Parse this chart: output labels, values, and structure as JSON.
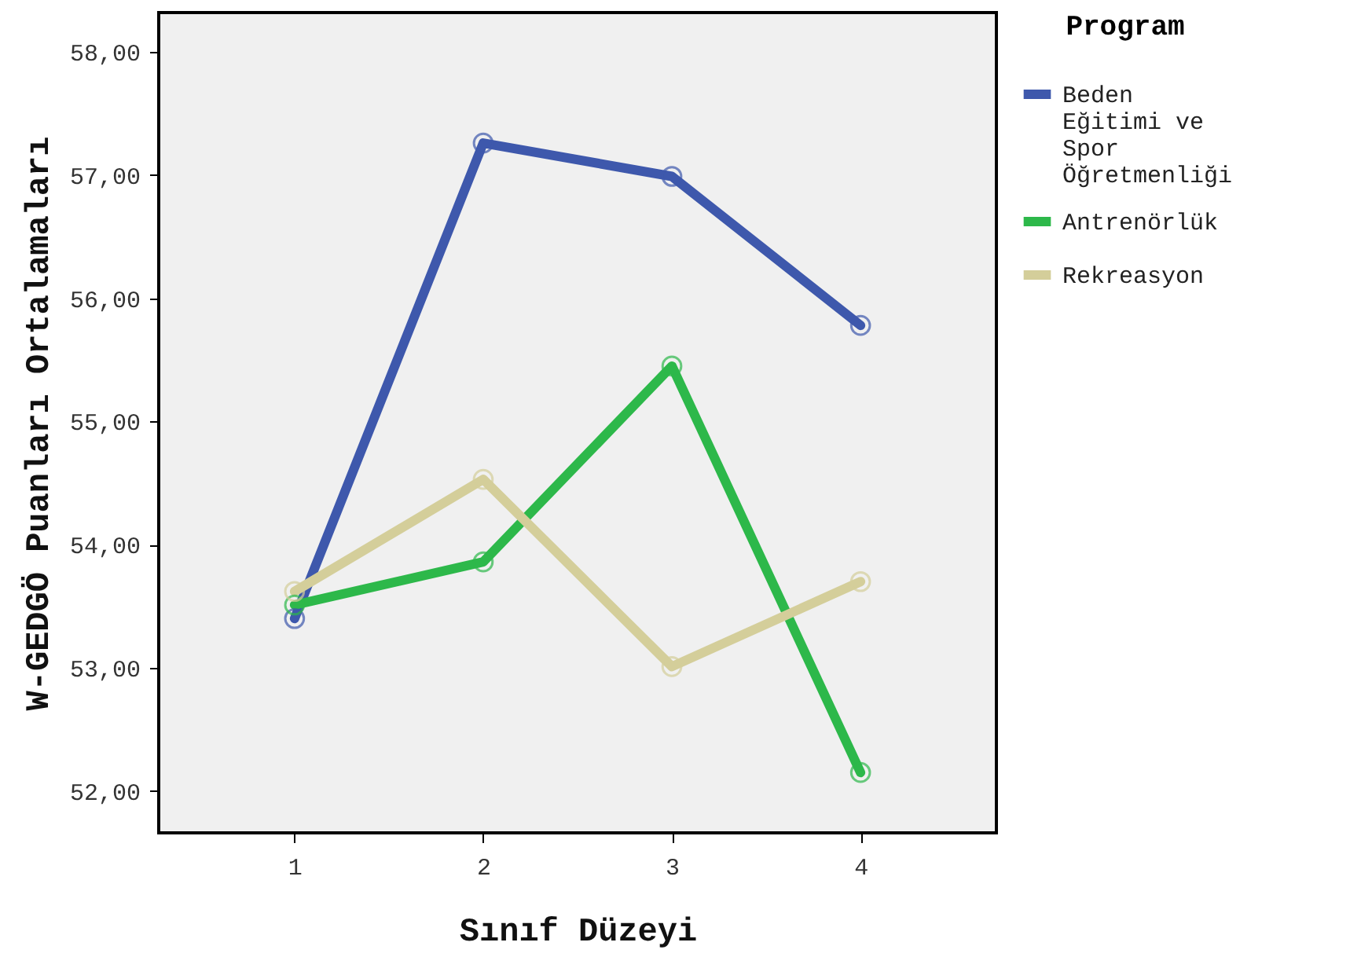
{
  "chart_data": {
    "type": "line",
    "xlabel": "Sınıf Düzeyi",
    "ylabel": "W-GEDGÖ Puanları Ortalamaları",
    "legend_title": "Program",
    "legend": "right",
    "marker": "circle",
    "line_style": "solid",
    "grid": false,
    "x": [
      1,
      2,
      3,
      4
    ],
    "xlim": [
      0.28,
      4.72
    ],
    "xticks": [
      1,
      2,
      3,
      4
    ],
    "ylim": [
      51.66,
      58.32
    ],
    "yticks": [
      {
        "value": 52,
        "label": "52,00"
      },
      {
        "value": 53,
        "label": "53,00"
      },
      {
        "value": 54,
        "label": "54,00"
      },
      {
        "value": 55,
        "label": "55,00"
      },
      {
        "value": 56,
        "label": "56,00"
      },
      {
        "value": 57,
        "label": "57,00"
      },
      {
        "value": 58,
        "label": "58,00"
      }
    ],
    "series": [
      {
        "name": "Beden Eğitimi ve Spor Öğretmenliği",
        "color": "#3e58ac",
        "values": [
          53.4,
          57.26,
          56.99,
          55.78
        ]
      },
      {
        "name": "Antrenörlük",
        "color": "#2db84a",
        "values": [
          53.51,
          53.86,
          55.45,
          52.15
        ]
      },
      {
        "name": "Rekreasyon",
        "color": "#d4ce9a",
        "values": [
          53.62,
          54.53,
          53.01,
          53.7
        ]
      }
    ]
  }
}
